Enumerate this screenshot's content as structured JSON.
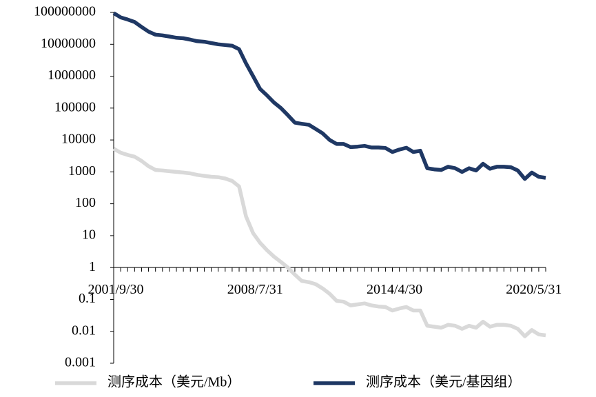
{
  "chart_data": {
    "type": "line",
    "categories": [
      "2001/9/30",
      null,
      null,
      null,
      null,
      null,
      null,
      null,
      null,
      null,
      null,
      null,
      null,
      null,
      null,
      null,
      null,
      null,
      null,
      null,
      "2008/7/31",
      null,
      null,
      null,
      null,
      null,
      null,
      null,
      null,
      null,
      null,
      null,
      null,
      null,
      null,
      null,
      null,
      null,
      null,
      null,
      "2014/4/30",
      null,
      null,
      null,
      null,
      null,
      null,
      null,
      null,
      null,
      null,
      null,
      null,
      null,
      null,
      null,
      null,
      null,
      null,
      null,
      "2020/5/31",
      null,
      null
    ],
    "series": [
      {
        "name": "测序成本（美元/Mb）",
        "color": "#d9d9d9",
        "values": [
          5300,
          4000,
          3400,
          3000,
          2200,
          1500,
          1150,
          1100,
          1050,
          1000,
          950,
          900,
          800,
          750,
          700,
          680,
          620,
          520,
          350,
          40,
          12,
          6,
          3.5,
          2.2,
          1.5,
          1.0,
          0.6,
          0.38,
          0.35,
          0.3,
          0.22,
          0.15,
          0.09,
          0.085,
          0.065,
          0.07,
          0.075,
          0.065,
          0.06,
          0.058,
          0.045,
          0.052,
          0.058,
          0.045,
          0.045,
          0.015,
          0.014,
          0.013,
          0.016,
          0.015,
          0.012,
          0.015,
          0.013,
          0.02,
          0.014,
          0.016,
          0.016,
          0.015,
          0.012,
          0.007,
          0.011,
          0.008,
          0.0075
        ]
      },
      {
        "name": "测序成本（美元/基因组）",
        "color": "#1f3864",
        "values": [
          95000000,
          70000000,
          60000000,
          50000000,
          35000000,
          25000000,
          20000000,
          19000000,
          17500000,
          16000000,
          15500000,
          14000000,
          12500000,
          12000000,
          11000000,
          10000000,
          9500000,
          9000000,
          7000000,
          2500000,
          1000000,
          400000,
          250000,
          150000,
          100000,
          60000,
          35000,
          32000,
          30000,
          22000,
          16000,
          10000,
          7500,
          7500,
          6000,
          6200,
          6500,
          5800,
          5800,
          5600,
          4200,
          5000,
          5700,
          4200,
          4600,
          1300,
          1200,
          1150,
          1450,
          1300,
          1000,
          1300,
          1100,
          1800,
          1250,
          1450,
          1450,
          1400,
          1100,
          600,
          950,
          700,
          650
        ]
      }
    ],
    "ylim": [
      0.001,
      100000000
    ],
    "log_y": true,
    "yticks": [
      0.001,
      0.01,
      0.1,
      1,
      10,
      100,
      1000,
      10000,
      100000,
      1000000,
      10000000,
      100000000
    ],
    "grid": false,
    "legend": "bottom"
  }
}
